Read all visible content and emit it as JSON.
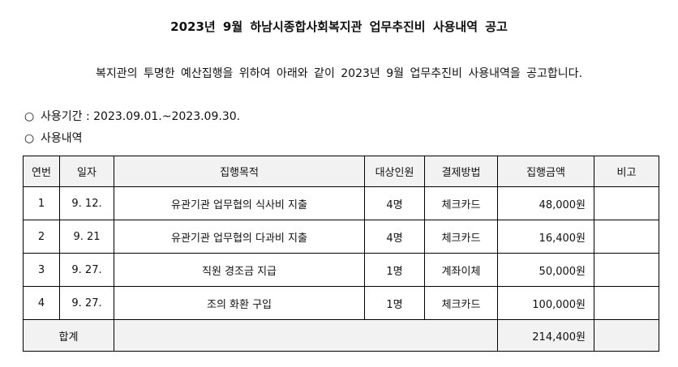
{
  "title": "2023년  9월  하남시종합사회복지관  업무추진비  사용내역  공고",
  "intro": "복지관의 투명한 예산집행을 위하여 아래와 같이 2023년 9월 업무추진비 사용내역을 공고합니다.",
  "period": {
    "mark": "○",
    "label": "사용기간 : 2023.09.01.~2023.09.30."
  },
  "details": {
    "mark": "○",
    "label": "사용내역"
  },
  "table": {
    "headers": [
      "연번",
      "일자",
      "집행목적",
      "대상인원",
      "결제방법",
      "집행금액",
      "비고"
    ],
    "rows": [
      [
        "1",
        "9. 12.",
        "유관기관 업무협의 식사비 지출",
        "4명",
        "체크카드",
        "48,000원",
        ""
      ],
      [
        "2",
        "9. 21",
        "유관기관 업무협의 다과비 지출",
        "4명",
        "체크카드",
        "16,400원",
        ""
      ],
      [
        "3",
        "9. 27.",
        "직원 경조금 지급",
        "1명",
        "계좌이체",
        "50,000원",
        ""
      ],
      [
        "4",
        "9. 27.",
        "조의 화환 구입",
        "1명",
        "체크카드",
        "100,000원",
        ""
      ]
    ],
    "total": {
      "label": "합계",
      "amount": "214,400원"
    }
  }
}
